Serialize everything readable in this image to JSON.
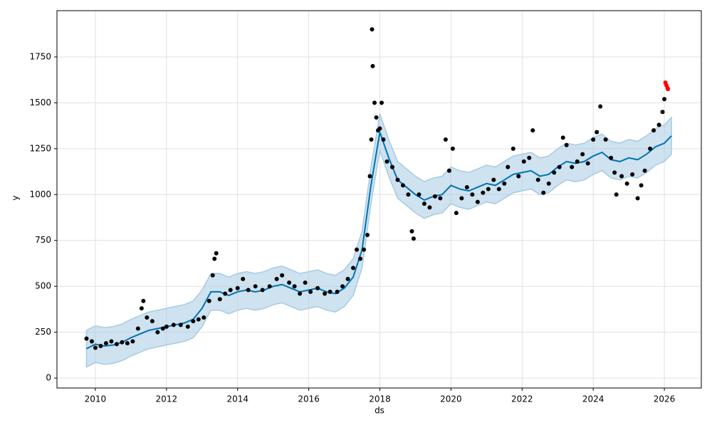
{
  "chart_data": {
    "type": "line",
    "xlabel": "ds",
    "ylabel": "y",
    "xlim": [
      2008.92,
      2027.04
    ],
    "ylim": [
      -54,
      2002
    ],
    "xticks": [
      2010,
      2012,
      2014,
      2016,
      2018,
      2020,
      2022,
      2024,
      2026
    ],
    "yticks": [
      0,
      250,
      500,
      750,
      1000,
      1250,
      1500,
      1750
    ],
    "grid": true,
    "x": [
      2009.75,
      2010,
      2010.25,
      2010.5,
      2010.75,
      2011,
      2011.25,
      2011.5,
      2011.75,
      2012,
      2012.25,
      2012.5,
      2012.75,
      2013,
      2013.25,
      2013.5,
      2013.75,
      2014,
      2014.25,
      2014.5,
      2014.75,
      2015,
      2015.25,
      2015.5,
      2015.75,
      2016,
      2016.25,
      2016.5,
      2016.75,
      2017,
      2017.25,
      2017.5,
      2017.75,
      2018,
      2018.25,
      2018.5,
      2018.75,
      2019,
      2019.25,
      2019.5,
      2019.75,
      2020,
      2020.25,
      2020.5,
      2020.75,
      2021,
      2021.25,
      2021.5,
      2021.75,
      2022,
      2022.25,
      2022.5,
      2022.75,
      2023,
      2023.25,
      2023.5,
      2023.75,
      2024,
      2024.25,
      2024.5,
      2024.75,
      2025,
      2025.25,
      2025.5,
      2025.75,
      2026,
      2026.2
    ],
    "series": [
      {
        "type": "area",
        "color": "#a6cbe3",
        "lower": [
          60,
          85,
          75,
          80,
          95,
          120,
          140,
          160,
          170,
          180,
          190,
          200,
          220,
          280,
          370,
          370,
          350,
          370,
          380,
          370,
          380,
          400,
          410,
          390,
          370,
          380,
          390,
          370,
          360,
          390,
          450,
          600,
          950,
          1240,
          1100,
          980,
          940,
          900,
          870,
          890,
          900,
          950,
          930,
          920,
          940,
          960,
          950,
          980,
          1010,
          1020,
          1030,
          1000,
          1010,
          1050,
          1080,
          1070,
          1080,
          1110,
          1130,
          1090,
          1080,
          1100,
          1090,
          1120,
          1160,
          1180,
          1220
        ],
        "upper": [
          260,
          285,
          275,
          280,
          295,
          320,
          340,
          360,
          370,
          380,
          390,
          400,
          420,
          480,
          570,
          570,
          550,
          570,
          580,
          570,
          580,
          600,
          610,
          590,
          570,
          580,
          590,
          570,
          560,
          590,
          650,
          800,
          1150,
          1440,
          1300,
          1180,
          1140,
          1100,
          1070,
          1090,
          1100,
          1150,
          1130,
          1120,
          1140,
          1160,
          1150,
          1180,
          1210,
          1220,
          1230,
          1200,
          1210,
          1250,
          1280,
          1270,
          1280,
          1310,
          1330,
          1290,
          1280,
          1300,
          1290,
          1320,
          1360,
          1380,
          1420
        ]
      },
      {
        "type": "line",
        "color": "#0072b2",
        "values": [
          160,
          185,
          175,
          180,
          195,
          220,
          240,
          260,
          270,
          280,
          290,
          300,
          320,
          380,
          470,
          470,
          450,
          470,
          480,
          470,
          480,
          500,
          510,
          490,
          470,
          480,
          490,
          470,
          460,
          490,
          550,
          700,
          1050,
          1340,
          1200,
          1080,
          1040,
          1000,
          970,
          990,
          1000,
          1050,
          1030,
          1020,
          1040,
          1060,
          1050,
          1080,
          1110,
          1120,
          1130,
          1100,
          1110,
          1150,
          1180,
          1170,
          1180,
          1210,
          1230,
          1190,
          1180,
          1200,
          1190,
          1220,
          1260,
          1280,
          1320
        ]
      },
      {
        "type": "scatter",
        "color": "#000000",
        "x": [
          2009.75,
          2009.9,
          2010.0,
          2010.15,
          2010.3,
          2010.45,
          2010.6,
          2010.75,
          2010.9,
          2011.05,
          2011.2,
          2011.3,
          2011.35,
          2011.45,
          2011.6,
          2011.75,
          2011.9,
          2012.0,
          2012.2,
          2012.4,
          2012.6,
          2012.75,
          2012.9,
          2013.05,
          2013.2,
          2013.3,
          2013.35,
          2013.4,
          2013.5,
          2013.65,
          2013.8,
          2014.0,
          2014.15,
          2014.3,
          2014.5,
          2014.7,
          2014.9,
          2015.1,
          2015.25,
          2015.45,
          2015.6,
          2015.75,
          2015.9,
          2016.05,
          2016.25,
          2016.45,
          2016.6,
          2016.8,
          2016.95,
          2017.1,
          2017.25,
          2017.35,
          2017.45,
          2017.55,
          2017.65,
          2017.72,
          2017.76,
          2017.78,
          2017.8,
          2017.85,
          2017.9,
          2017.95,
          2018.0,
          2018.05,
          2018.1,
          2018.2,
          2018.35,
          2018.5,
          2018.65,
          2018.8,
          2018.9,
          2018.95,
          2019.1,
          2019.25,
          2019.4,
          2019.55,
          2019.7,
          2019.85,
          2019.95,
          2020.05,
          2020.15,
          2020.3,
          2020.45,
          2020.6,
          2020.75,
          2020.9,
          2021.05,
          2021.2,
          2021.35,
          2021.5,
          2021.6,
          2021.75,
          2021.9,
          2022.05,
          2022.2,
          2022.3,
          2022.45,
          2022.6,
          2022.75,
          2022.9,
          2023.05,
          2023.15,
          2023.25,
          2023.4,
          2023.55,
          2023.7,
          2023.85,
          2024.0,
          2024.1,
          2024.2,
          2024.35,
          2024.5,
          2024.6,
          2024.65,
          2024.8,
          2024.95,
          2025.1,
          2025.25,
          2025.35,
          2025.45,
          2025.6,
          2025.7,
          2025.85,
          2025.95,
          2026.0
        ],
        "values": [
          215,
          200,
          165,
          175,
          190,
          200,
          185,
          195,
          190,
          200,
          270,
          380,
          420,
          330,
          310,
          250,
          270,
          280,
          290,
          290,
          280,
          310,
          320,
          330,
          420,
          560,
          650,
          680,
          430,
          460,
          480,
          490,
          540,
          480,
          500,
          480,
          500,
          540,
          560,
          520,
          500,
          460,
          520,
          470,
          490,
          460,
          470,
          470,
          500,
          540,
          600,
          700,
          650,
          700,
          780,
          1100,
          1300,
          1900,
          1700,
          1500,
          1420,
          1350,
          1360,
          1500,
          1300,
          1180,
          1150,
          1080,
          1050,
          1000,
          800,
          760,
          1000,
          950,
          930,
          990,
          980,
          1300,
          1130,
          1250,
          900,
          980,
          1040,
          1000,
          960,
          1010,
          1030,
          1080,
          1030,
          1060,
          1150,
          1250,
          1100,
          1180,
          1200,
          1350,
          1080,
          1010,
          1060,
          1120,
          1150,
          1310,
          1270,
          1150,
          1180,
          1220,
          1170,
          1300,
          1340,
          1480,
          1300,
          1200,
          1120,
          1000,
          1100,
          1060,
          1110,
          980,
          1050,
          1130,
          1250,
          1350,
          1380,
          1450,
          1520
        ]
      },
      {
        "type": "scatter",
        "color": "#ff0000",
        "x": [
          2026.03,
          2026.06,
          2026.09,
          2026.1
        ],
        "values": [
          1610,
          1595,
          1580,
          1575
        ]
      }
    ]
  }
}
